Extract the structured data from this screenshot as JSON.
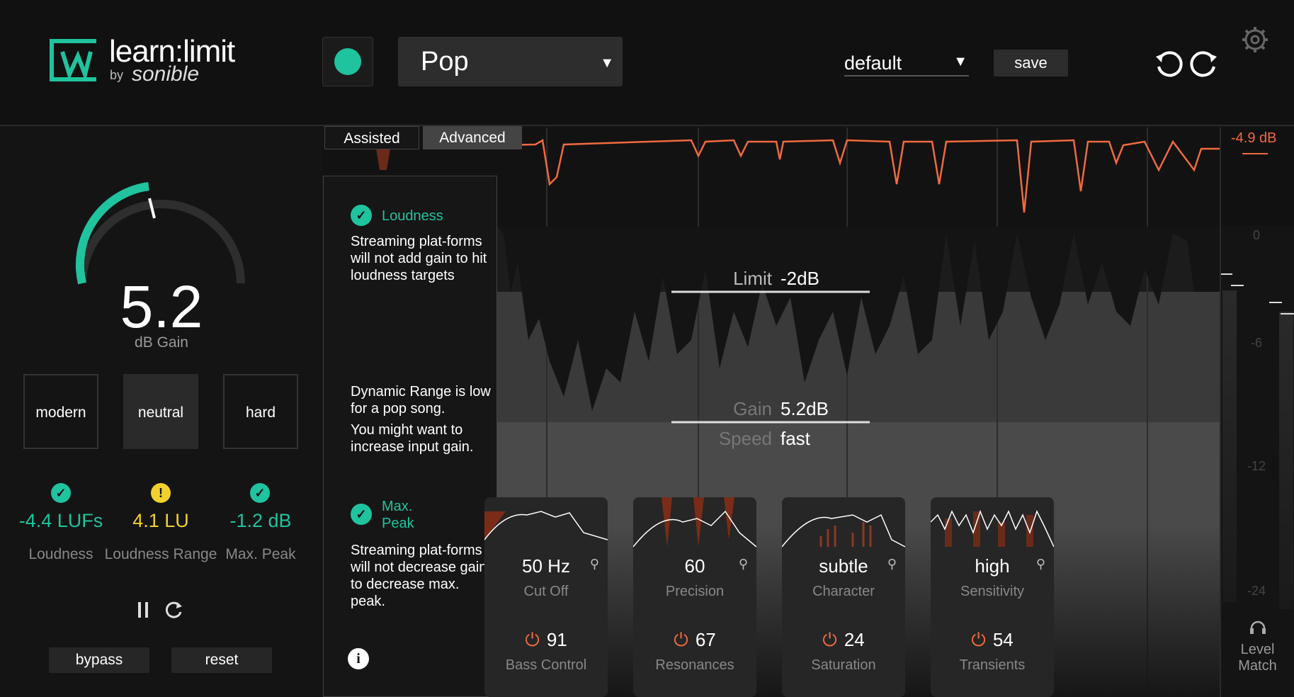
{
  "header": {
    "logo_text": "learn:limit",
    "logo_by": "by",
    "logo_brand": "sonible",
    "genre": "Pop",
    "preset": "default",
    "save_label": "save"
  },
  "left": {
    "gain_value": "5.2",
    "gain_label": "dB Gain",
    "gain_knob_fraction": 0.45,
    "modes": [
      "modern",
      "neutral",
      "hard"
    ],
    "selected_mode": "neutral",
    "stats": [
      {
        "value": "-4.4 LUFs",
        "label": "Loudness",
        "status": "ok",
        "color": "#1fc39e"
      },
      {
        "value": "4.1 LU",
        "label": "Loudness Range",
        "status": "warning",
        "color": "#f2d12c"
      },
      {
        "value": "-1.2 dB",
        "label": "Max. Peak",
        "status": "ok",
        "color": "#1fc39e"
      }
    ],
    "bypass_label": "bypass",
    "reset_label": "reset"
  },
  "tabs": [
    "Assisted",
    "Advanced"
  ],
  "active_tab": "Advanced",
  "info": {
    "loudness_head": "Loudness",
    "loudness_body": "Streaming plat-forms will not add gain to hit loudness targets",
    "range_body_1": "Dynamic Range is low for a pop song.",
    "range_body_2": "You might want to increase input gain.",
    "peak_head_1": "Max.",
    "peak_head_2": "Peak",
    "peak_body": "Streaming plat-forms will not decrease gain to decrease max. peak.",
    "info_glyph": "i"
  },
  "params": {
    "limit_label": "Limit",
    "limit_value": "-2dB",
    "gain_label": "Gain",
    "gain_value": "5.2dB",
    "speed_label": "Speed",
    "speed_value": "fast"
  },
  "cards": [
    {
      "value": "50 Hz",
      "label": "Cut Off",
      "power_value": "91",
      "power_label": "Bass Control"
    },
    {
      "value": "60",
      "label": "Precision",
      "power_value": "67",
      "power_label": "Resonances"
    },
    {
      "value": "subtle",
      "label": "Character",
      "power_value": "24",
      "power_label": "Saturation"
    },
    {
      "value": "high",
      "label": "Sensitivity",
      "power_value": "54",
      "power_label": "Transients"
    }
  ],
  "meter": {
    "peak_readout": "-4.9 dB",
    "ticks": [
      "0",
      "-6",
      "-12",
      "-24"
    ],
    "level_match_1": "Level",
    "level_match_2": "Match"
  },
  "colors": {
    "accent": "#1fc39e",
    "warning": "#f2d12c",
    "reduction": "#f06a3f"
  }
}
